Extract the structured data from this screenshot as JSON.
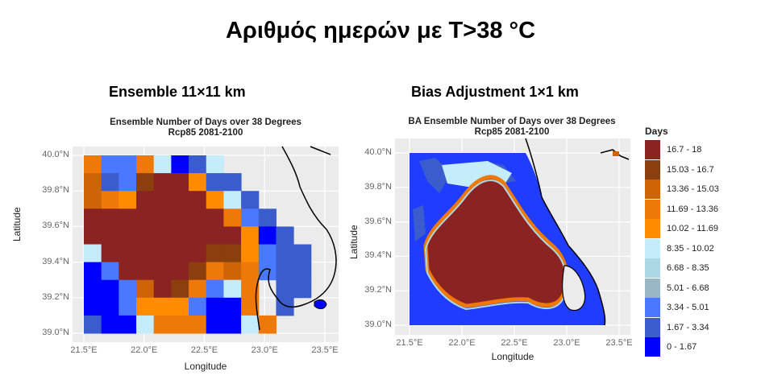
{
  "slide_title": "Αριθμός ημερών με Τ>38 °C",
  "panels": {
    "left_subtitle": "Ensemble 11×11 km",
    "right_subtitle": "Bias Adjustment 1×1 km"
  },
  "chart_data": [
    {
      "type": "heatmap",
      "title": "Ensemble Number of Days over 38 Degrees",
      "subtitle": "Rcp85 2081-2100",
      "xlabel": "Longitude",
      "ylabel": "Latitude",
      "xticks": [
        "21.5°E",
        "22.0°E",
        "22.5°E",
        "23.0°E",
        "23.5°E"
      ],
      "yticks": [
        "40.0°N",
        "39.8°N",
        "39.6°N",
        "39.4°N",
        "39.2°N",
        "39.0°N"
      ],
      "xlim": [
        21.5,
        23.5
      ],
      "ylim": [
        39.0,
        40.0
      ],
      "grid_lon_start": 21.5,
      "grid_lat_start": 40.0,
      "grid_step_lon": 0.145,
      "grid_step_lat": 0.1,
      "grid_class_index": [
        [
          7,
          2,
          2,
          7,
          5,
          0,
          1,
          5,
          -1,
          -1,
          -1,
          -1,
          -1
        ],
        [
          8,
          1,
          2,
          9,
          10,
          10,
          6,
          1,
          1,
          -1,
          -1,
          -1,
          -1
        ],
        [
          8,
          7,
          6,
          10,
          10,
          10,
          10,
          6,
          5,
          1,
          -1,
          -1,
          -1
        ],
        [
          10,
          10,
          10,
          10,
          10,
          10,
          10,
          10,
          7,
          2,
          1,
          -1,
          -1
        ],
        [
          10,
          10,
          10,
          10,
          10,
          10,
          10,
          10,
          10,
          6,
          0,
          1,
          -1
        ],
        [
          5,
          10,
          10,
          10,
          10,
          10,
          10,
          9,
          9,
          6,
          2,
          1,
          1
        ],
        [
          0,
          2,
          10,
          10,
          10,
          10,
          9,
          7,
          8,
          7,
          2,
          1,
          1
        ],
        [
          0,
          0,
          2,
          8,
          10,
          9,
          7,
          2,
          5,
          7,
          -1,
          1,
          1
        ],
        [
          0,
          0,
          2,
          6,
          6,
          6,
          2,
          0,
          0,
          7,
          -1,
          1,
          -1
        ],
        [
          1,
          0,
          0,
          5,
          7,
          7,
          7,
          0,
          0,
          5,
          7,
          -1,
          -1
        ]
      ]
    },
    {
      "type": "heatmap",
      "title": "BA Ensemble Number of Days over 38 Degrees",
      "subtitle": "Rcp85 2081-2100",
      "xlabel": "Longitude",
      "ylabel": "Latitude",
      "xticks": [
        "21.5°E",
        "22.0°E",
        "22.5°E",
        "23.0°E",
        "23.5°E"
      ],
      "yticks": [
        "40.0°N",
        "39.8°N",
        "39.6°N",
        "39.4°N",
        "39.2°N",
        "39.0°N"
      ],
      "xlim": [
        21.5,
        23.5
      ],
      "ylim": [
        39.0,
        40.0
      ]
    }
  ],
  "legend": {
    "title": "Days",
    "items": [
      {
        "label": "16.7 - 18",
        "color": "#8b2323"
      },
      {
        "label": "15.03 - 16.7",
        "color": "#8b3f0f"
      },
      {
        "label": "13.36 - 15.03",
        "color": "#cd6508"
      },
      {
        "label": "11.69 - 13.36",
        "color": "#ee7808"
      },
      {
        "label": "10.02 - 11.69",
        "color": "#ff8c00"
      },
      {
        "label": "8.35 - 10.02",
        "color": "#c4ecfa"
      },
      {
        "label": "6.68 - 8.35",
        "color": "#acd8e6"
      },
      {
        "label": "5.01 - 6.68",
        "color": "#98b8c8"
      },
      {
        "label": "3.34 - 5.01",
        "color": "#4a78ff"
      },
      {
        "label": "1.67 - 3.34",
        "color": "#3a5ccc"
      },
      {
        "label": "0 - 1.67",
        "color": "#0000ff"
      }
    ]
  }
}
